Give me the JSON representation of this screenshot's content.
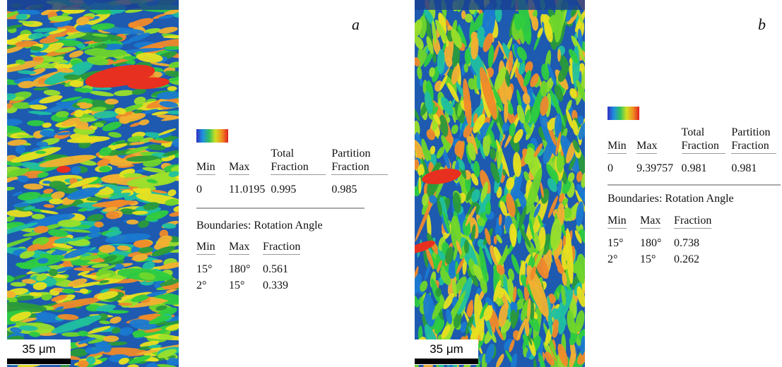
{
  "panels": [
    {
      "label": "a",
      "scale_bar": "35 μm",
      "kam_table": {
        "headers": [
          "Min",
          "Max",
          "Total Fraction",
          "Partition Fraction"
        ],
        "rows": [
          [
            "0",
            "11.0195",
            "0.995",
            "0.985"
          ]
        ]
      },
      "boundaries": {
        "title": "Boundaries: Rotation Angle",
        "headers": [
          "Min",
          "Max",
          "Fraction"
        ],
        "rows": [
          [
            "15°",
            "180°",
            "0.561"
          ],
          [
            "2°",
            "15°",
            "0.339"
          ]
        ]
      }
    },
    {
      "label": "b",
      "scale_bar": "35 μm",
      "kam_table": {
        "headers": [
          "Min",
          "Max",
          "Total Fraction",
          "Partition Fraction"
        ],
        "rows": [
          [
            "0",
            "9.39757",
            "0.981",
            "0.981"
          ]
        ]
      },
      "boundaries": {
        "title": "Boundaries: Rotation Angle",
        "headers": [
          "Min",
          "Max",
          "Fraction"
        ],
        "rows": [
          [
            "15°",
            "180°",
            "0.738"
          ],
          [
            "2°",
            "15°",
            "0.262"
          ]
        ]
      }
    }
  ]
}
